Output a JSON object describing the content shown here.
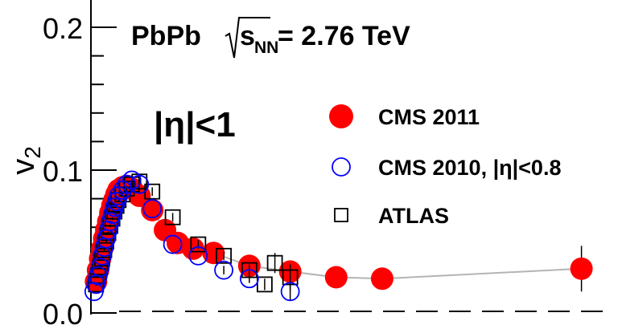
{
  "title": "PbPb √s_NN = 2.76 TeV",
  "title_parts": {
    "prefix": "PbPb ",
    "s": "s",
    "sub": "NN",
    "suffix": " = 2.76 TeV"
  },
  "eta_label": "|η|<1",
  "colors": {
    "cms2011": "#ff0000",
    "cms2010": "#0000ff",
    "atlas": "#000000",
    "line": "#b4b4b4"
  },
  "chart_data": {
    "type": "scatter",
    "ylabel": "v2",
    "xlabel": "",
    "ylim": [
      0.0,
      0.2
    ],
    "xlim": [
      0.0,
      1.0
    ],
    "x_ticks_shown": false,
    "y_ticks": [
      {
        "value": 0.0,
        "label": "0.0"
      },
      {
        "value": 0.1,
        "label": "0.1"
      },
      {
        "value": 0.2,
        "label": "0.2"
      }
    ],
    "legend_position": "right",
    "series": [
      {
        "name": "CMS 2011",
        "marker": "filled-circle",
        "color": "#ff0000",
        "x": [
          0.01,
          0.014,
          0.018,
          0.022,
          0.026,
          0.03,
          0.034,
          0.038,
          0.042,
          0.046,
          0.05,
          0.054,
          0.062,
          0.07,
          0.08,
          0.095,
          0.12,
          0.145,
          0.17,
          0.2,
          0.24,
          0.31,
          0.39,
          0.48,
          0.57,
          0.96
        ],
        "y": [
          0.022,
          0.03,
          0.038,
          0.045,
          0.052,
          0.058,
          0.064,
          0.07,
          0.075,
          0.079,
          0.083,
          0.086,
          0.088,
          0.089,
          0.087,
          0.082,
          0.072,
          0.058,
          0.049,
          0.045,
          0.042,
          0.033,
          0.029,
          0.025,
          0.024,
          0.031
        ],
        "err": [
          0.002,
          0.002,
          0.002,
          0.002,
          0.002,
          0.002,
          0.002,
          0.002,
          0.002,
          0.002,
          0.002,
          0.002,
          0.002,
          0.002,
          0.003,
          0.003,
          0.003,
          0.003,
          0.003,
          0.003,
          0.003,
          0.003,
          0.003,
          0.003,
          0.003,
          0.016
        ]
      },
      {
        "name": "CMS 2010, |η|<0.8",
        "marker": "open-circle",
        "color": "#0000ff",
        "x": [
          0.006,
          0.01,
          0.014,
          0.018,
          0.022,
          0.026,
          0.03,
          0.034,
          0.038,
          0.042,
          0.046,
          0.05,
          0.054,
          0.062,
          0.07,
          0.08,
          0.095,
          0.12,
          0.16,
          0.21,
          0.26,
          0.31,
          0.39
        ],
        "y": [
          0.015,
          0.02,
          0.026,
          0.032,
          0.04,
          0.046,
          0.052,
          0.058,
          0.064,
          0.069,
          0.074,
          0.078,
          0.082,
          0.086,
          0.09,
          0.093,
          0.09,
          0.073,
          0.048,
          0.04,
          0.03,
          0.024,
          0.015
        ],
        "err": [
          0.001,
          0.001,
          0.001,
          0.001,
          0.001,
          0.001,
          0.001,
          0.001,
          0.001,
          0.001,
          0.001,
          0.001,
          0.001,
          0.001,
          0.001,
          0.001,
          0.002,
          0.002,
          0.002,
          0.002,
          0.003,
          0.003,
          0.006
        ]
      },
      {
        "name": "ATLAS",
        "marker": "open-square",
        "color": "#000000",
        "x": [
          0.01,
          0.014,
          0.018,
          0.022,
          0.026,
          0.03,
          0.034,
          0.038,
          0.042,
          0.046,
          0.05,
          0.054,
          0.062,
          0.07,
          0.08,
          0.095,
          0.12,
          0.16,
          0.21,
          0.26,
          0.31,
          0.34,
          0.36,
          0.39
        ],
        "y": [
          0.02,
          0.026,
          0.032,
          0.038,
          0.044,
          0.05,
          0.056,
          0.061,
          0.066,
          0.071,
          0.075,
          0.079,
          0.083,
          0.087,
          0.09,
          0.092,
          0.085,
          0.067,
          0.048,
          0.04,
          0.03,
          0.02,
          0.035,
          0.025
        ],
        "err": [
          0.001,
          0.001,
          0.001,
          0.001,
          0.001,
          0.001,
          0.001,
          0.001,
          0.001,
          0.001,
          0.001,
          0.001,
          0.001,
          0.002,
          0.002,
          0.002,
          0.003,
          0.003,
          0.003,
          0.003,
          0.004,
          0.004,
          0.007,
          0.009
        ]
      }
    ]
  }
}
